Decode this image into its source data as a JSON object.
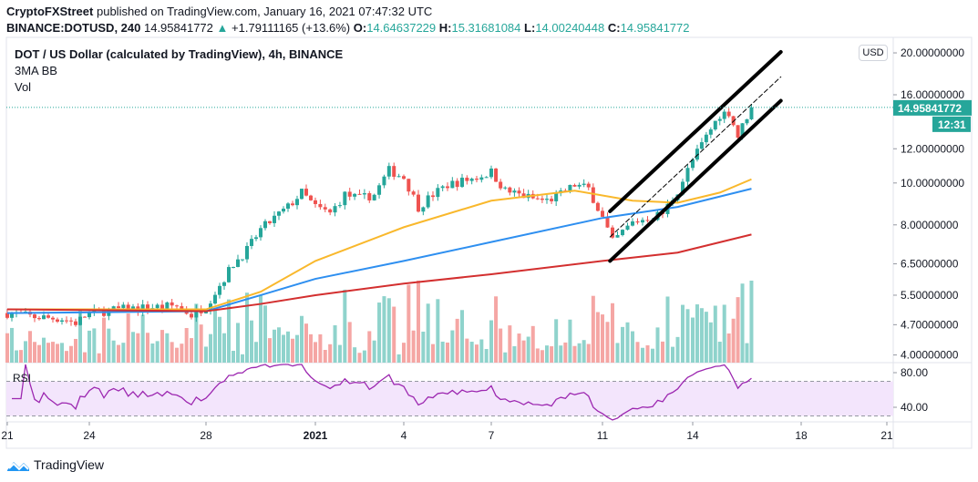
{
  "header": {
    "publisher": "CryptoFXStreet",
    "published_text": "published on TradingView.com, January 16, 2021 07:47:32 UTC",
    "symbol": "BINANCE:DOTUSD, 240",
    "last": "14.95841772",
    "change": "+1.79111165 (+13.6%)",
    "o_label": "O:",
    "o": "14.64637229",
    "h_label": "H:",
    "h": "15.31681084",
    "l_label": "L:",
    "l": "14.00240448",
    "c_label": "C:",
    "c": "14.95841772"
  },
  "legend": {
    "title": "DOT / US Dollar (calculated by TradingView), 4h, BINANCE",
    "indicator1": "3MA BB",
    "indicator2": "Vol",
    "rsi": "RSI"
  },
  "currency_button": "USD",
  "last_price_label": "14.95841772",
  "countdown": "12:31",
  "brand": "TradingView",
  "colors": {
    "up": "#26a69a",
    "down": "#ef5350",
    "ma_fast": "#f9b82c",
    "ma_mid": "#2e8ff0",
    "ma_slow": "#d32f2f",
    "rsi": "#9c27b0",
    "rsi_band": "#f3e5fc"
  },
  "chart_data": {
    "type": "candlestick",
    "interval": "4h",
    "price_scale": "log",
    "price_ticks": [
      "20.00000000",
      "16.00000000",
      "12.00000000",
      "10.00000000",
      "8.00000000",
      "6.50000000",
      "5.50000000",
      "4.70000000",
      "4.00000000"
    ],
    "price_tick_values": [
      20,
      16,
      12,
      10,
      8,
      6.5,
      5.5,
      4.7,
      4.0
    ],
    "rsi_ticks": [
      "80.00",
      "40.00"
    ],
    "rsi_tick_values": [
      80,
      40
    ],
    "rsi_band": [
      30,
      70
    ],
    "time_ticks": [
      {
        "label": "21",
        "date": "2020-12-21"
      },
      {
        "label": "24",
        "date": "2020-12-24"
      },
      {
        "label": "28",
        "date": "2020-12-28"
      },
      {
        "label": "2021",
        "date": "2021-01-01"
      },
      {
        "label": "4",
        "date": "2021-01-04"
      },
      {
        "label": "7",
        "date": "2021-01-07"
      },
      {
        "label": "11",
        "date": "2021-01-11"
      },
      {
        "label": "14",
        "date": "2021-01-14"
      },
      {
        "label": "18",
        "date": "2021-01-18"
      },
      {
        "label": "21",
        "date": "2021-01-21"
      }
    ],
    "close_path": [
      [
        "2020-12-21T00",
        5.0
      ],
      [
        "2020-12-22T00",
        4.9
      ],
      [
        "2020-12-23T00",
        4.85
      ],
      [
        "2020-12-23T12",
        4.75
      ],
      [
        "2020-12-24T00",
        5.0
      ],
      [
        "2020-12-25T00",
        5.1
      ],
      [
        "2020-12-26T00",
        5.15
      ],
      [
        "2020-12-27T00",
        5.2
      ],
      [
        "2020-12-27T12",
        4.95
      ],
      [
        "2020-12-28T00",
        5.2
      ],
      [
        "2020-12-28T12",
        5.8
      ],
      [
        "2020-12-29T00",
        6.5
      ],
      [
        "2020-12-29T12",
        7.0
      ],
      [
        "2020-12-30T00",
        7.8
      ],
      [
        "2020-12-30T12",
        8.3
      ],
      [
        "2020-12-31T00",
        8.8
      ],
      [
        "2020-12-31T12",
        9.5
      ],
      [
        "2021-01-01T00",
        8.8
      ],
      [
        "2021-01-01T12",
        8.5
      ],
      [
        "2021-01-02T00",
        9.4
      ],
      [
        "2021-01-02T12",
        9.2
      ],
      [
        "2021-01-03T00",
        9.4
      ],
      [
        "2021-01-03T12",
        10.7
      ],
      [
        "2021-01-04T00",
        10.3
      ],
      [
        "2021-01-04T12",
        8.8
      ],
      [
        "2021-01-05T00",
        9.4
      ],
      [
        "2021-01-05T12",
        9.9
      ],
      [
        "2021-01-06T00",
        10.1
      ],
      [
        "2021-01-06T12",
        10.3
      ],
      [
        "2021-01-07T00",
        10.6
      ],
      [
        "2021-01-07T12",
        9.6
      ],
      [
        "2021-01-08T00",
        9.4
      ],
      [
        "2021-01-08T12",
        9.2
      ],
      [
        "2021-01-09T00",
        9.1
      ],
      [
        "2021-01-09T12",
        9.4
      ],
      [
        "2021-01-10T00",
        9.9
      ],
      [
        "2021-01-10T12",
        9.7
      ],
      [
        "2021-01-11T00",
        8.3
      ],
      [
        "2021-01-11T08",
        7.3
      ],
      [
        "2021-01-11T16",
        7.7
      ],
      [
        "2021-01-12T00",
        8.1
      ],
      [
        "2021-01-12T12",
        8.3
      ],
      [
        "2021-01-13T00",
        8.5
      ],
      [
        "2021-01-13T12",
        9.6
      ],
      [
        "2021-01-14T00",
        11.3
      ],
      [
        "2021-01-14T12",
        12.8
      ],
      [
        "2021-01-15T00",
        14.4
      ],
      [
        "2021-01-15T08",
        14.6
      ],
      [
        "2021-01-15T16",
        12.8
      ],
      [
        "2021-01-16T00",
        14.3
      ],
      [
        "2021-01-16T04",
        14.958
      ]
    ],
    "moving_averages": [
      {
        "color": "ma_fast",
        "points": [
          [
            "2020-12-21T00",
            5.1
          ],
          [
            "2020-12-28T00",
            5.1
          ],
          [
            "2020-12-30T00",
            5.6
          ],
          [
            "2021-01-01T00",
            6.6
          ],
          [
            "2021-01-04T00",
            7.9
          ],
          [
            "2021-01-07T00",
            9.1
          ],
          [
            "2021-01-10T00",
            9.6
          ],
          [
            "2021-01-12T00",
            9.1
          ],
          [
            "2021-01-13T12",
            9.0
          ],
          [
            "2021-01-15T00",
            9.5
          ],
          [
            "2021-01-16T04",
            10.2
          ]
        ]
      },
      {
        "color": "ma_mid",
        "points": [
          [
            "2020-12-21T00",
            5.0
          ],
          [
            "2020-12-28T00",
            5.05
          ],
          [
            "2020-12-30T00",
            5.5
          ],
          [
            "2021-01-01T00",
            6.0
          ],
          [
            "2021-01-04T00",
            6.6
          ],
          [
            "2021-01-07T00",
            7.3
          ],
          [
            "2021-01-11T00",
            8.3
          ],
          [
            "2021-01-13T12",
            8.8
          ],
          [
            "2021-01-16T04",
            9.7
          ]
        ]
      },
      {
        "color": "ma_slow",
        "points": [
          [
            "2020-12-21T00",
            5.1
          ],
          [
            "2020-12-28T00",
            5.05
          ],
          [
            "2020-12-30T00",
            5.25
          ],
          [
            "2021-01-01T00",
            5.5
          ],
          [
            "2021-01-04T00",
            5.85
          ],
          [
            "2021-01-07T00",
            6.15
          ],
          [
            "2021-01-11T00",
            6.6
          ],
          [
            "2021-01-13T12",
            6.9
          ],
          [
            "2021-01-16T04",
            7.6
          ]
        ]
      }
    ],
    "channel": [
      {
        "style": "solid",
        "from": [
          "2021-01-11T06",
          8.6
        ],
        "to": [
          "2021-01-17T06",
          20.1
        ]
      },
      {
        "style": "dashed",
        "from": [
          "2021-01-11T06",
          7.5
        ],
        "to": [
          "2021-01-17T06",
          17.6
        ]
      },
      {
        "style": "solid",
        "from": [
          "2021-01-11T06",
          6.6
        ],
        "to": [
          "2021-01-17T06",
          15.5
        ]
      }
    ]
  }
}
